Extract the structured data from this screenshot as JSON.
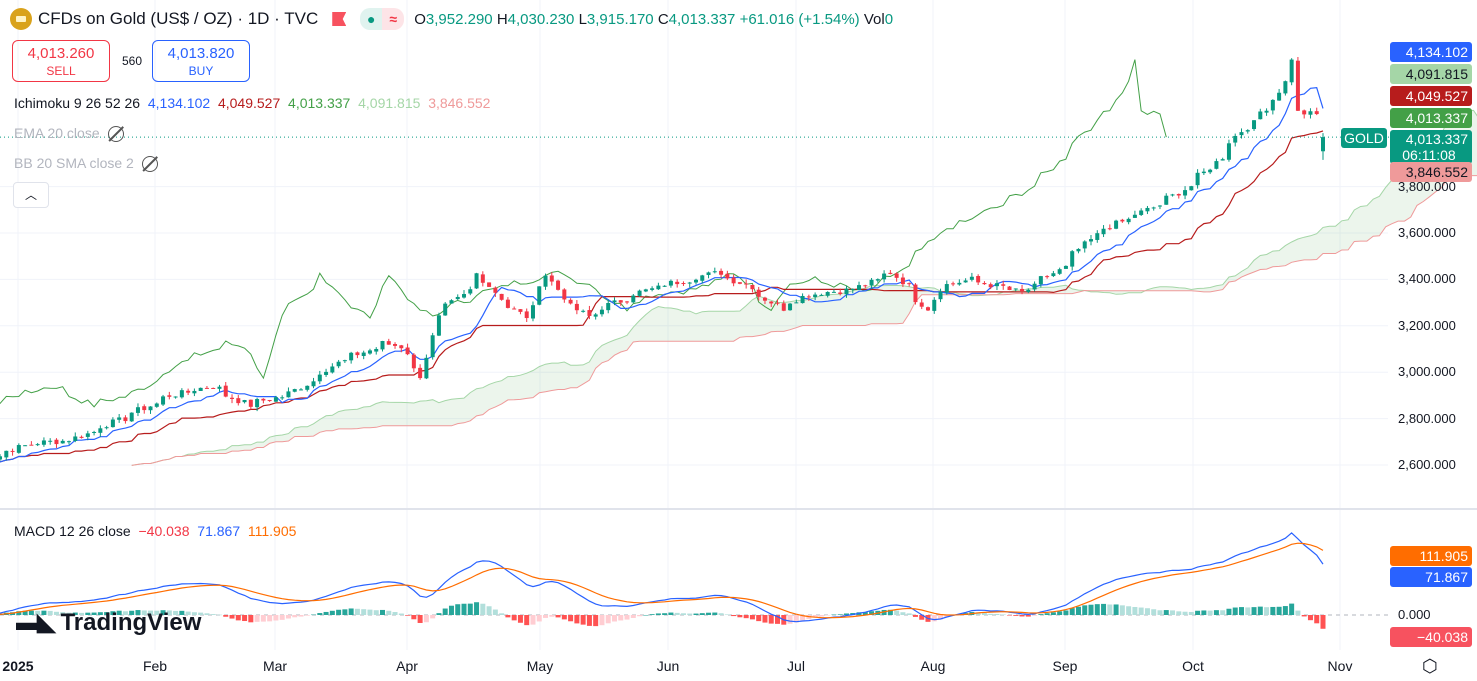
{
  "header": {
    "title": "CFDs on Gold (US$ / OZ) · 1D · TVC",
    "ohlc": {
      "o_label": "O",
      "o": "3,952.290",
      "h_label": "H",
      "h": "4,030.230",
      "l_label": "L",
      "l": "3,915.170",
      "c_label": "C",
      "c": "4,013.337",
      "change": "+61.016 (+1.54%)",
      "vol_label": "Vol",
      "vol": "0"
    },
    "status_dot_icon": "market-open-dot",
    "status_wave_icon": "approx-icon"
  },
  "trade": {
    "sell_price": "4,013.260",
    "sell_label": "SELL",
    "spread": "560",
    "buy_price": "4,013.820",
    "buy_label": "BUY"
  },
  "legend": {
    "ichimoku_label": "Ichimoku 9 26 52 26",
    "ichimoku_values": [
      "4,134.102",
      "4,049.527",
      "4,013.337",
      "4,091.815",
      "3,846.552"
    ],
    "ema_label": "EMA 20 close",
    "bb_label": "BB 20 SMA close 2",
    "macd_label": "MACD 12 26 close",
    "macd_values": [
      "−40.038",
      "71.867",
      "111.905"
    ],
    "collapse_icon": "chevron-up"
  },
  "price_axis": {
    "ticks": [
      "2,600.000",
      "2,800.000",
      "3,000.000",
      "3,200.000",
      "3,400.000",
      "3,600.000",
      "3,800.000"
    ],
    "tags": [
      {
        "value": "4,134.102",
        "bg": "#2962ff",
        "fg": "#ffffff"
      },
      {
        "value": "4,091.815",
        "bg": "#a5d6a7",
        "fg": "#131722"
      },
      {
        "value": "4,049.527",
        "bg": "#b71c1c",
        "fg": "#ffffff"
      },
      {
        "value": "4,013.337",
        "bg": "#43a047",
        "fg": "#ffffff"
      },
      {
        "value": "4,013.337",
        "bg": "#089981",
        "fg": "#ffffff",
        "sub": "06:11:08"
      },
      {
        "value": "3,846.552",
        "bg": "#ef9a9a",
        "fg": "#131722"
      }
    ],
    "symbol_tag": "GOLD"
  },
  "macd_axis": {
    "zero": "0.000",
    "tags": [
      {
        "value": "111.905",
        "bg": "#ff6d00",
        "fg": "#ffffff"
      },
      {
        "value": "71.867",
        "bg": "#2962ff",
        "fg": "#ffffff"
      },
      {
        "value": "−40.038",
        "bg": "#f7525f",
        "fg": "#ffffff"
      }
    ]
  },
  "time_axis": {
    "labels": [
      "2025",
      "Feb",
      "Mar",
      "Apr",
      "May",
      "Jun",
      "Jul",
      "Aug",
      "Sep",
      "Oct",
      "Nov"
    ],
    "settings_icon": "gear-hexagon"
  },
  "branding": {
    "logo_text": "TradingView"
  },
  "chart_data": {
    "type": "candlestick",
    "symbol": "GOLD",
    "interval": "1D",
    "ylim": [
      2550,
      4400
    ],
    "grid": true,
    "colors": {
      "up": "#089981",
      "down": "#f23645",
      "tenkan": "#2962ff",
      "kijun": "#b71c1c",
      "chikou": "#43a047",
      "senkou_a": "#a5d6a7",
      "senkou_b": "#ef9a9a",
      "macd": "#2962ff",
      "signal": "#ff6d00"
    },
    "approx_closes": [
      [
        "2024-12-30",
        2610
      ],
      [
        "2025-01-10",
        2690
      ],
      [
        "2025-01-20",
        2710
      ],
      [
        "2025-01-31",
        2800
      ],
      [
        "2025-02-11",
        2900
      ],
      [
        "2025-02-20",
        2940
      ],
      [
        "2025-02-28",
        2858
      ],
      [
        "2025-03-10",
        2910
      ],
      [
        "2025-03-20",
        3040
      ],
      [
        "2025-03-31",
        3125
      ],
      [
        "2025-04-03",
        3110
      ],
      [
        "2025-04-08",
        2985
      ],
      [
        "2025-04-11",
        3235
      ],
      [
        "2025-04-17",
        3330
      ],
      [
        "2025-04-21",
        3425
      ],
      [
        "2025-04-25",
        3320
      ],
      [
        "2025-05-01",
        3240
      ],
      [
        "2025-05-06",
        3420
      ],
      [
        "2025-05-09",
        3325
      ],
      [
        "2025-05-15",
        3240
      ],
      [
        "2025-05-20",
        3290
      ],
      [
        "2025-05-26",
        3340
      ],
      [
        "2025-06-02",
        3380
      ],
      [
        "2025-06-13",
        3430
      ],
      [
        "2025-06-20",
        3370
      ],
      [
        "2025-06-27",
        3275
      ],
      [
        "2025-07-03",
        3335
      ],
      [
        "2025-07-14",
        3360
      ],
      [
        "2025-07-22",
        3430
      ],
      [
        "2025-07-30",
        3275
      ],
      [
        "2025-08-01",
        3360
      ],
      [
        "2025-08-08",
        3400
      ],
      [
        "2025-08-20",
        3345
      ],
      [
        "2025-08-29",
        3450
      ],
      [
        "2025-09-05",
        3590
      ],
      [
        "2025-09-10",
        3640
      ],
      [
        "2025-09-16",
        3690
      ],
      [
        "2025-09-23",
        3760
      ],
      [
        "2025-09-30",
        3860
      ],
      [
        "2025-10-08",
        4040
      ],
      [
        "2025-10-14",
        4140
      ],
      [
        "2025-10-17",
        4250
      ],
      [
        "2025-10-20",
        4355
      ],
      [
        "2025-10-21",
        4120
      ],
      [
        "2025-10-24",
        4110
      ],
      [
        "2025-10-27",
        4013
      ]
    ],
    "last": {
      "open": 3952.29,
      "high": 4030.23,
      "low": 3915.17,
      "close": 4013.337
    }
  }
}
